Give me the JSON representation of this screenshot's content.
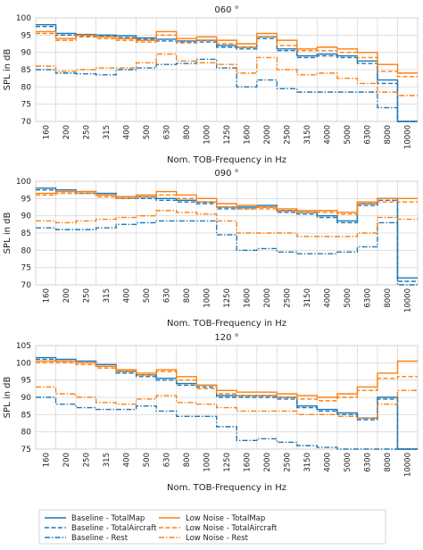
{
  "chart_data": [
    {
      "type": "line",
      "title": "060 °",
      "xlabel": "Nom. TOB-Frequency in Hz",
      "ylabel": "SPL in dB",
      "ylim": [
        70,
        100
      ],
      "yticks": [
        70,
        75,
        80,
        85,
        90,
        95,
        100
      ],
      "categories": [
        "160",
        "200",
        "250",
        "315",
        "400",
        "500",
        "630",
        "800",
        "1000",
        "1250",
        "1600",
        "2000",
        "2500",
        "3150",
        "4000",
        "5000",
        "6300",
        "8000",
        "10000"
      ],
      "grid": true,
      "series": [
        {
          "name": "Baseline - TotalMap",
          "color": "#1f77b4",
          "dash": "solid",
          "values": [
            98.0,
            95.5,
            95.2,
            95.0,
            94.8,
            94.2,
            93.8,
            93.3,
            93.5,
            92.0,
            91.5,
            94.5,
            91.0,
            89.0,
            89.5,
            89.0,
            87.5,
            82.0,
            70.0
          ]
        },
        {
          "name": "Baseline - TotalAircraft",
          "color": "#1f77b4",
          "dash": "dashed",
          "values": [
            97.5,
            95.0,
            94.8,
            94.6,
            94.3,
            93.8,
            93.3,
            92.8,
            93.0,
            91.5,
            91.0,
            94.0,
            90.5,
            88.5,
            89.0,
            88.5,
            86.8,
            81.0,
            70.0
          ]
        },
        {
          "name": "Baseline - Rest",
          "color": "#1f77b4",
          "dash": "dashdot",
          "values": [
            85.0,
            84.0,
            83.8,
            83.5,
            85.0,
            85.5,
            86.5,
            86.8,
            88.0,
            85.5,
            80.0,
            82.0,
            79.5,
            78.5,
            78.5,
            78.5,
            78.5,
            74.0,
            70.0
          ]
        },
        {
          "name": "Low Noise - TotalMap",
          "color": "#ff7f0e",
          "dash": "solid",
          "values": [
            96.0,
            94.0,
            95.0,
            94.5,
            94.0,
            93.5,
            96.0,
            94.0,
            94.5,
            93.5,
            92.5,
            95.5,
            93.5,
            91.0,
            91.5,
            91.0,
            90.0,
            86.5,
            84.0
          ]
        },
        {
          "name": "Low Noise - TotalAircraft",
          "color": "#ff7f0e",
          "dash": "dashed",
          "values": [
            95.5,
            93.5,
            94.5,
            94.0,
            93.5,
            93.0,
            95.0,
            93.0,
            93.5,
            92.5,
            91.5,
            94.5,
            92.0,
            90.5,
            90.5,
            90.0,
            88.5,
            84.5,
            83.0
          ]
        },
        {
          "name": "Low Noise - Rest",
          "color": "#ff7f0e",
          "dash": "dashdot",
          "values": [
            86.0,
            84.5,
            85.0,
            85.5,
            85.5,
            87.0,
            89.5,
            87.5,
            87.0,
            86.5,
            84.0,
            88.5,
            85.0,
            83.5,
            84.0,
            82.5,
            81.0,
            78.5,
            77.5
          ]
        }
      ]
    },
    {
      "type": "line",
      "title": "090 °",
      "xlabel": "Nom. TOB-Frequency in Hz",
      "ylabel": "SPL in dB",
      "ylim": [
        70,
        100
      ],
      "yticks": [
        70,
        75,
        80,
        85,
        90,
        95,
        100
      ],
      "categories": [
        "160",
        "200",
        "250",
        "315",
        "400",
        "500",
        "630",
        "800",
        "1000",
        "1250",
        "1600",
        "2000",
        "2500",
        "3150",
        "4000",
        "5000",
        "6300",
        "8000",
        "10000"
      ],
      "grid": true,
      "series": [
        {
          "name": "Baseline - TotalMap",
          "color": "#1f77b4",
          "dash": "solid",
          "values": [
            98.0,
            97.5,
            97.0,
            96.5,
            95.5,
            95.5,
            95.0,
            94.5,
            94.0,
            92.5,
            92.5,
            93.0,
            91.5,
            91.0,
            90.0,
            88.5,
            93.5,
            95.0,
            72.0
          ]
        },
        {
          "name": "Baseline - TotalAircraft",
          "color": "#1f77b4",
          "dash": "dashed",
          "values": [
            97.5,
            97.0,
            96.5,
            96.0,
            95.0,
            95.0,
            94.5,
            94.0,
            93.5,
            92.0,
            92.0,
            92.5,
            91.0,
            90.5,
            89.5,
            88.0,
            93.0,
            94.5,
            71.0
          ]
        },
        {
          "name": "Baseline - Rest",
          "color": "#1f77b4",
          "dash": "dashdot",
          "values": [
            86.5,
            86.0,
            86.0,
            86.5,
            87.5,
            88.0,
            88.5,
            88.5,
            88.5,
            84.5,
            80.0,
            80.5,
            79.5,
            79.0,
            79.0,
            79.5,
            81.0,
            88.0,
            70.0
          ]
        },
        {
          "name": "Low Noise - TotalMap",
          "color": "#ff7f0e",
          "dash": "solid",
          "values": [
            96.5,
            97.0,
            97.0,
            96.0,
            95.5,
            96.0,
            97.0,
            96.0,
            95.0,
            93.5,
            93.0,
            92.5,
            92.0,
            91.5,
            91.5,
            91.0,
            94.0,
            95.0,
            95.0
          ]
        },
        {
          "name": "Low Noise - TotalAircraft",
          "color": "#ff7f0e",
          "dash": "dashed",
          "values": [
            96.0,
            96.5,
            96.5,
            95.5,
            95.0,
            95.5,
            96.0,
            95.0,
            94.0,
            92.5,
            92.0,
            92.0,
            91.5,
            91.0,
            91.0,
            90.5,
            93.5,
            94.0,
            94.0
          ]
        },
        {
          "name": "Low Noise - Rest",
          "color": "#ff7f0e",
          "dash": "dashdot",
          "values": [
            88.5,
            88.0,
            88.5,
            89.0,
            89.5,
            90.0,
            91.5,
            91.0,
            90.5,
            88.5,
            85.0,
            85.0,
            85.0,
            84.0,
            84.0,
            84.0,
            85.0,
            89.5,
            89.0
          ]
        }
      ]
    },
    {
      "type": "line",
      "title": "120 °",
      "xlabel": "Nom. TOB-Frequency in Hz",
      "ylabel": "SPL in dB",
      "ylim": [
        75,
        105
      ],
      "yticks": [
        75,
        80,
        85,
        90,
        95,
        100,
        105
      ],
      "categories": [
        "160",
        "200",
        "250",
        "315",
        "400",
        "500",
        "630",
        "800",
        "1000",
        "1250",
        "1600",
        "2000",
        "2500",
        "3150",
        "4000",
        "5000",
        "6300",
        "8000",
        "10000"
      ],
      "grid": true,
      "series": [
        {
          "name": "Baseline - TotalMap",
          "color": "#1f77b4",
          "dash": "solid",
          "values": [
            101.5,
            101.0,
            100.5,
            99.5,
            97.5,
            96.5,
            95.5,
            94.0,
            93.5,
            90.5,
            90.5,
            90.5,
            90.0,
            87.5,
            86.5,
            85.5,
            84.0,
            90.0,
            75.0
          ]
        },
        {
          "name": "Baseline - TotalAircraft",
          "color": "#1f77b4",
          "dash": "dashed",
          "values": [
            101.0,
            100.5,
            100.0,
            99.0,
            97.0,
            96.0,
            95.0,
            93.5,
            93.0,
            90.0,
            90.0,
            90.0,
            89.5,
            87.0,
            86.0,
            85.0,
            83.5,
            89.5,
            75.0
          ]
        },
        {
          "name": "Baseline - Rest",
          "color": "#1f77b4",
          "dash": "dashdot",
          "values": [
            90.0,
            88.0,
            87.0,
            86.5,
            86.5,
            87.5,
            86.0,
            84.5,
            84.5,
            81.5,
            77.5,
            78.0,
            77.0,
            76.0,
            75.5,
            75.0,
            75.0,
            75.0,
            75.0
          ]
        },
        {
          "name": "Low Noise - TotalMap",
          "color": "#ff7f0e",
          "dash": "solid",
          "values": [
            100.5,
            100.5,
            100.0,
            99.0,
            98.0,
            97.0,
            98.0,
            96.0,
            93.5,
            92.0,
            91.5,
            91.5,
            91.0,
            90.5,
            90.0,
            91.0,
            93.0,
            97.0,
            100.5
          ]
        },
        {
          "name": "Low Noise - TotalAircraft",
          "color": "#ff7f0e",
          "dash": "dashed",
          "values": [
            100.0,
            100.0,
            99.5,
            98.5,
            97.5,
            96.5,
            97.5,
            95.0,
            92.5,
            91.0,
            90.5,
            90.5,
            90.0,
            89.5,
            89.0,
            90.0,
            92.0,
            95.5,
            96.0
          ]
        },
        {
          "name": "Low Noise - Rest",
          "color": "#ff7f0e",
          "dash": "dashdot",
          "values": [
            93.0,
            91.0,
            90.0,
            88.5,
            88.0,
            89.5,
            90.5,
            88.5,
            88.0,
            87.0,
            86.0,
            86.0,
            86.0,
            85.0,
            85.0,
            84.5,
            84.0,
            88.0,
            92.0
          ]
        }
      ]
    }
  ],
  "legend": {
    "placement": "bottom",
    "items": [
      {
        "label": "Baseline - TotalMap",
        "color": "#1f77b4",
        "dash": "solid"
      },
      {
        "label": "Low Noise - TotalMap",
        "color": "#ff7f0e",
        "dash": "solid"
      },
      {
        "label": "Baseline - TotalAircraft",
        "color": "#1f77b4",
        "dash": "dashed"
      },
      {
        "label": "Low Noise - TotalAircraft",
        "color": "#ff7f0e",
        "dash": "dashed"
      },
      {
        "label": "Baseline - Rest",
        "color": "#1f77b4",
        "dash": "dashdot"
      },
      {
        "label": "Low Noise - Rest",
        "color": "#ff7f0e",
        "dash": "dashdot"
      }
    ]
  }
}
